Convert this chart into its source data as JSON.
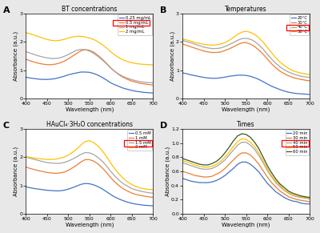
{
  "wavelengths": [
    400,
    410,
    420,
    430,
    440,
    450,
    460,
    470,
    480,
    490,
    500,
    510,
    520,
    530,
    540,
    550,
    560,
    570,
    580,
    590,
    600,
    610,
    620,
    630,
    640,
    650,
    660,
    670,
    680,
    690,
    700
  ],
  "fig_facecolor": "#E8E8E8",
  "axes_facecolor": "#FFFFFF",
  "panel_A": {
    "title": "BT concentrations",
    "label": "A",
    "ylabel": "Absorbance (a.u.)",
    "xlabel": "Wavelength (nm)",
    "ylim": [
      0,
      3
    ],
    "xlim": [
      400,
      700
    ],
    "yticks": [
      0,
      1,
      2,
      3
    ],
    "xticks": [
      400,
      450,
      500,
      550,
      600,
      650,
      700
    ],
    "highlight_idx": 1,
    "series": [
      {
        "label": "0.25 mg/mL",
        "color": "#4472C4",
        "values": [
          0.75,
          0.72,
          0.7,
          0.68,
          0.67,
          0.67,
          0.68,
          0.7,
          0.74,
          0.78,
          0.83,
          0.87,
          0.9,
          0.93,
          0.93,
          0.92,
          0.88,
          0.82,
          0.74,
          0.65,
          0.55,
          0.48,
          0.42,
          0.36,
          0.32,
          0.28,
          0.25,
          0.23,
          0.21,
          0.2,
          0.19
        ]
      },
      {
        "label": "0.5 mg/mL",
        "color": "#ED7D31",
        "values": [
          1.38,
          1.33,
          1.28,
          1.24,
          1.21,
          1.19,
          1.19,
          1.21,
          1.25,
          1.31,
          1.39,
          1.49,
          1.59,
          1.68,
          1.72,
          1.7,
          1.63,
          1.52,
          1.39,
          1.24,
          1.08,
          0.95,
          0.83,
          0.74,
          0.67,
          0.61,
          0.57,
          0.53,
          0.51,
          0.49,
          0.47
        ]
      },
      {
        "label": "1 mg/mL",
        "color": "#A5A5A5",
        "values": [
          1.65,
          1.6,
          1.55,
          1.5,
          1.46,
          1.43,
          1.41,
          1.41,
          1.43,
          1.48,
          1.55,
          1.63,
          1.7,
          1.73,
          1.72,
          1.67,
          1.59,
          1.48,
          1.36,
          1.22,
          1.07,
          0.95,
          0.85,
          0.77,
          0.71,
          0.66,
          0.62,
          0.59,
          0.57,
          0.56,
          0.55
        ]
      },
      {
        "label": "2 mg/mL",
        "color": "#FFC000",
        "values": [
          2.32,
          2.28,
          2.23,
          2.18,
          2.13,
          2.08,
          2.05,
          2.03,
          2.05,
          2.08,
          2.13,
          2.17,
          2.19,
          2.19,
          2.17,
          2.13,
          2.08,
          2.0,
          1.9,
          1.78,
          1.65,
          1.53,
          1.43,
          1.35,
          1.3,
          1.26,
          1.23,
          1.21,
          1.2,
          1.19,
          1.18
        ]
      }
    ]
  },
  "panel_B": {
    "title": "Temperatures",
    "label": "B",
    "ylabel": "Absorbance (a.u.)",
    "xlabel": "Wavelength (nm)",
    "ylim": [
      0,
      3
    ],
    "xlim": [
      400,
      700
    ],
    "yticks": [
      0,
      1,
      2,
      3
    ],
    "xticks": [
      400,
      450,
      500,
      550,
      600,
      650,
      700
    ],
    "highlight_idx": 2,
    "series": [
      {
        "label": "20°C",
        "color": "#4472C4",
        "values": [
          0.9,
          0.87,
          0.83,
          0.8,
          0.77,
          0.74,
          0.72,
          0.71,
          0.71,
          0.73,
          0.75,
          0.78,
          0.8,
          0.82,
          0.82,
          0.81,
          0.78,
          0.73,
          0.67,
          0.59,
          0.51,
          0.43,
          0.37,
          0.31,
          0.26,
          0.22,
          0.19,
          0.17,
          0.16,
          0.15,
          0.14
        ]
      },
      {
        "label": "30°C",
        "color": "#ED7D31",
        "values": [
          1.92,
          1.87,
          1.82,
          1.77,
          1.72,
          1.67,
          1.64,
          1.62,
          1.62,
          1.64,
          1.69,
          1.75,
          1.82,
          1.9,
          1.96,
          1.97,
          1.92,
          1.83,
          1.71,
          1.56,
          1.39,
          1.22,
          1.08,
          0.96,
          0.87,
          0.8,
          0.74,
          0.7,
          0.67,
          0.64,
          0.62
        ]
      },
      {
        "label": "40°C",
        "color": "#A5A5A5",
        "values": [
          2.05,
          2.0,
          1.96,
          1.91,
          1.86,
          1.81,
          1.78,
          1.76,
          1.76,
          1.78,
          1.83,
          1.9,
          1.97,
          2.05,
          2.11,
          2.12,
          2.09,
          2.01,
          1.89,
          1.74,
          1.56,
          1.39,
          1.24,
          1.11,
          1.01,
          0.93,
          0.87,
          0.82,
          0.78,
          0.76,
          0.74
        ]
      },
      {
        "label": "50°C",
        "color": "#FFC000",
        "values": [
          2.1,
          2.06,
          2.02,
          1.97,
          1.94,
          1.91,
          1.89,
          1.88,
          1.89,
          1.92,
          1.97,
          2.05,
          2.15,
          2.26,
          2.34,
          2.37,
          2.33,
          2.26,
          2.14,
          1.99,
          1.8,
          1.61,
          1.43,
          1.28,
          1.16,
          1.06,
          0.98,
          0.93,
          0.89,
          0.86,
          0.84
        ]
      }
    ]
  },
  "panel_C": {
    "title": "HAuCl₄·3H₂O concentrations",
    "label": "C",
    "ylabel": "Absorbance (a.u.)",
    "xlabel": "Wavelength (nm)",
    "ylim": [
      0,
      3
    ],
    "xlim": [
      400,
      700
    ],
    "yticks": [
      0,
      1,
      2,
      3
    ],
    "xticks": [
      400,
      450,
      500,
      550,
      600,
      650,
      700
    ],
    "highlight_idx": 2,
    "series": [
      {
        "label": "0.5 mM",
        "color": "#4472C4",
        "values": [
          0.95,
          0.92,
          0.89,
          0.87,
          0.85,
          0.83,
          0.82,
          0.81,
          0.81,
          0.83,
          0.87,
          0.92,
          0.98,
          1.04,
          1.07,
          1.06,
          1.02,
          0.96,
          0.88,
          0.78,
          0.68,
          0.59,
          0.52,
          0.46,
          0.41,
          0.37,
          0.34,
          0.32,
          0.3,
          0.29,
          0.28
        ]
      },
      {
        "label": "1 mM",
        "color": "#ED7D31",
        "values": [
          1.65,
          1.6,
          1.56,
          1.52,
          1.49,
          1.46,
          1.44,
          1.43,
          1.44,
          1.47,
          1.53,
          1.62,
          1.72,
          1.83,
          1.91,
          1.91,
          1.86,
          1.76,
          1.62,
          1.46,
          1.28,
          1.12,
          0.99,
          0.88,
          0.8,
          0.73,
          0.68,
          0.65,
          0.62,
          0.6,
          0.58
        ]
      },
      {
        "label": "1.5 mM",
        "color": "#A5A5A5",
        "values": [
          2.0,
          1.96,
          1.92,
          1.88,
          1.84,
          1.81,
          1.79,
          1.78,
          1.78,
          1.81,
          1.86,
          1.93,
          2.01,
          2.1,
          2.16,
          2.15,
          2.09,
          1.99,
          1.86,
          1.69,
          1.5,
          1.33,
          1.18,
          1.06,
          0.97,
          0.89,
          0.84,
          0.8,
          0.77,
          0.74,
          0.73
        ]
      },
      {
        "label": "2 mM",
        "color": "#FFC000",
        "values": [
          2.02,
          1.99,
          1.97,
          1.95,
          1.93,
          1.92,
          1.92,
          1.93,
          1.96,
          2.0,
          2.07,
          2.17,
          2.29,
          2.43,
          2.55,
          2.58,
          2.51,
          2.39,
          2.23,
          2.02,
          1.79,
          1.58,
          1.4,
          1.24,
          1.12,
          1.03,
          0.96,
          0.91,
          0.88,
          0.86,
          0.85
        ]
      }
    ]
  },
  "panel_D": {
    "title": "Times",
    "label": "D",
    "ylabel": "Absorbance (a.u.)",
    "xlabel": "Wavelength (nm)",
    "ylim": [
      0,
      1.2
    ],
    "xlim": [
      400,
      700
    ],
    "yticks": [
      0.0,
      0.2,
      0.4,
      0.6,
      0.8,
      1.0,
      1.2
    ],
    "xticks": [
      400,
      450,
      500,
      550,
      600,
      650,
      700
    ],
    "highlight_idx": 2,
    "series": [
      {
        "label": "20 min",
        "color": "#4472C4",
        "values": [
          0.5,
          0.48,
          0.46,
          0.45,
          0.44,
          0.44,
          0.44,
          0.45,
          0.47,
          0.5,
          0.54,
          0.59,
          0.64,
          0.7,
          0.73,
          0.73,
          0.7,
          0.65,
          0.59,
          0.51,
          0.43,
          0.37,
          0.31,
          0.27,
          0.23,
          0.2,
          0.18,
          0.17,
          0.15,
          0.14,
          0.14
        ]
      },
      {
        "label": "30 min",
        "color": "#ED7D31",
        "values": [
          0.6,
          0.58,
          0.56,
          0.54,
          0.53,
          0.52,
          0.52,
          0.53,
          0.56,
          0.59,
          0.64,
          0.7,
          0.76,
          0.82,
          0.86,
          0.86,
          0.83,
          0.77,
          0.7,
          0.61,
          0.52,
          0.44,
          0.38,
          0.32,
          0.28,
          0.24,
          0.22,
          0.2,
          0.19,
          0.18,
          0.17
        ]
      },
      {
        "label": "40 min",
        "color": "#A5A5A5",
        "values": [
          0.72,
          0.7,
          0.68,
          0.66,
          0.64,
          0.63,
          0.63,
          0.64,
          0.67,
          0.71,
          0.76,
          0.83,
          0.9,
          0.97,
          1.01,
          1.01,
          0.97,
          0.91,
          0.82,
          0.72,
          0.61,
          0.52,
          0.44,
          0.38,
          0.33,
          0.29,
          0.26,
          0.24,
          0.23,
          0.22,
          0.21
        ]
      },
      {
        "label": "50 min",
        "color": "#FFC000",
        "values": [
          0.75,
          0.73,
          0.71,
          0.69,
          0.67,
          0.66,
          0.66,
          0.67,
          0.7,
          0.74,
          0.8,
          0.87,
          0.95,
          1.02,
          1.06,
          1.05,
          1.01,
          0.95,
          0.86,
          0.75,
          0.64,
          0.54,
          0.46,
          0.4,
          0.34,
          0.3,
          0.27,
          0.25,
          0.24,
          0.23,
          0.22
        ]
      },
      {
        "label": "60 min",
        "color": "#375623",
        "values": [
          0.78,
          0.76,
          0.74,
          0.72,
          0.7,
          0.69,
          0.69,
          0.71,
          0.74,
          0.79,
          0.86,
          0.94,
          1.03,
          1.1,
          1.13,
          1.12,
          1.08,
          1.01,
          0.92,
          0.8,
          0.68,
          0.58,
          0.49,
          0.42,
          0.37,
          0.32,
          0.29,
          0.27,
          0.25,
          0.24,
          0.23
        ]
      }
    ]
  }
}
